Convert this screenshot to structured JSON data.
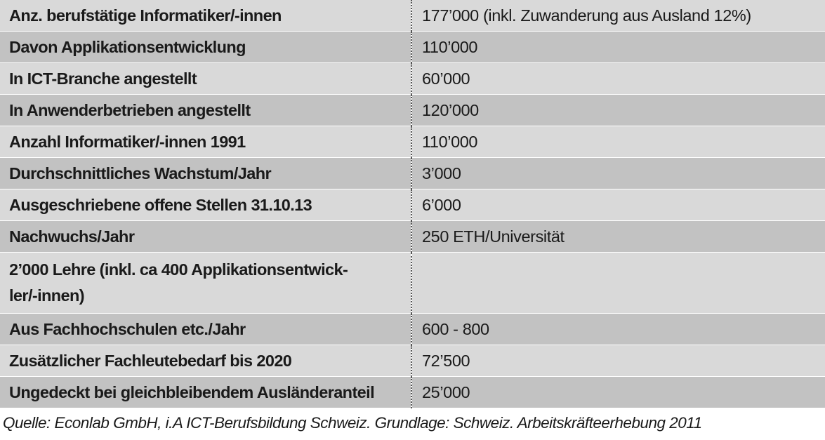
{
  "table": {
    "rows": [
      {
        "label": "Anz. berufstätige Informatiker/-innen",
        "value": "177’000 (inkl. Zuwanderung aus Ausland 12%)"
      },
      {
        "label": "Davon Applikationsentwicklung",
        "value": "110’000"
      },
      {
        "label": "In ICT-Branche angestellt",
        "value": "60’000"
      },
      {
        "label": "In Anwenderbetrieben angestellt",
        "value": "120’000"
      },
      {
        "label": "Anzahl Informatiker/-innen 1991",
        "value": "110’000"
      },
      {
        "label": "Durchschnittliches Wachstum/Jahr",
        "value": "3’000"
      },
      {
        "label": "Ausgeschriebene offene Stellen 31.10.13",
        "value": "6’000"
      },
      {
        "label": "Nachwuchs/Jahr",
        "value": "250 ETH/Universität"
      },
      {
        "label": "2’000 Lehre  (inkl. ca 400 Applikationsentwick-ler/-innen)",
        "label_line1": "2’000 Lehre  (inkl. ca 400 Applikationsentwick-",
        "label_line2": "ler/-innen)",
        "value": ""
      },
      {
        "label": "Aus Fachhochschulen etc./Jahr",
        "value": "600 - 800"
      },
      {
        "label": "Zusätzlicher Fachleutebedarf bis 2020",
        "value": "72’500"
      },
      {
        "label": "Ungedeckt bei gleichbleibendem Ausländeranteil",
        "value": "25’000"
      }
    ]
  },
  "source_note": "Quelle: Econlab GmbH,  i.A ICT-Berufsbildung Schweiz. Grundlage: Schweiz. Arbeitskräfteerhebung 2011",
  "colors": {
    "row_light": "#d9d9d9",
    "row_dark": "#c2c2c2",
    "divider": "#555555",
    "text": "#1a1a1a"
  }
}
